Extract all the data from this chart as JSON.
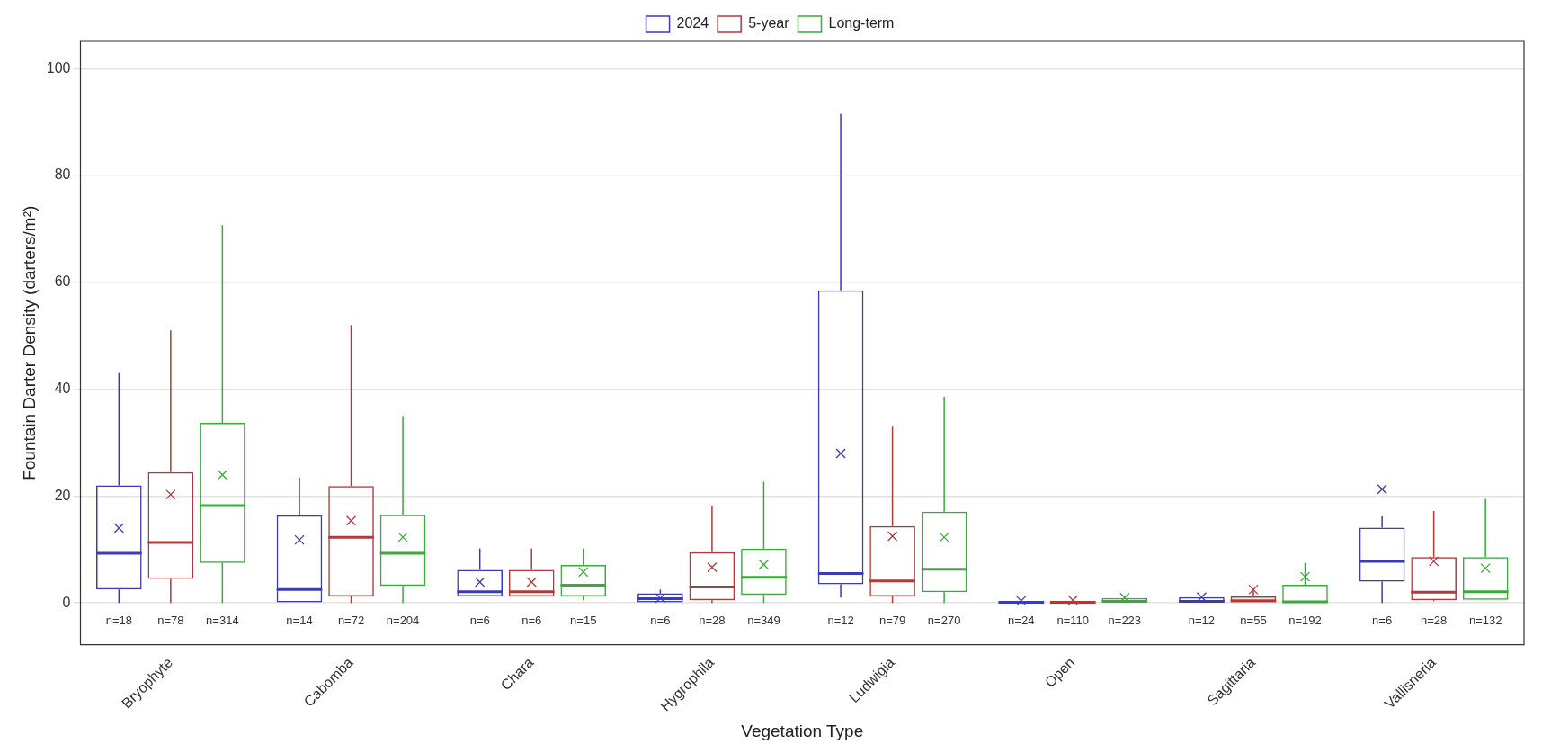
{
  "chart_data": {
    "type": "box",
    "xlabel": "Vegetation Type",
    "ylabel": "Fountain Darter Density (darters/m²)",
    "categories": [
      "Bryophyte",
      "Cabomba",
      "Chara",
      "Hygrophila",
      "Ludwigia",
      "Open",
      "Sagittaria",
      "Vallisneria"
    ],
    "ylim": [
      -7.8,
      105.1
    ],
    "yticks": [
      0,
      20,
      40,
      60,
      80,
      100
    ],
    "grid": "y",
    "legend": "top",
    "series": [
      {
        "name": "2024",
        "color": "#3b3bb3",
        "boxes": [
          {
            "low": 0,
            "q1": 2.5,
            "median": 9.3,
            "q3": 22,
            "high": 43,
            "mean": 14
          },
          {
            "low": 0,
            "q1": 0,
            "median": 2.5,
            "q3": 16.4,
            "high": 23.5,
            "mean": 11.8
          },
          {
            "low": 1.2,
            "q1": 1.2,
            "median": 2.1,
            "q3": 6.2,
            "high": 10.2,
            "mean": 3.9
          },
          {
            "low": 0,
            "q1": 0,
            "median": 0.8,
            "q3": 1.8,
            "high": 2.5,
            "mean": 0.9
          },
          {
            "low": 1,
            "q1": 3.5,
            "median": 5.5,
            "q3": 58.5,
            "high": 91.5,
            "mean": 28
          },
          {
            "low": 0,
            "q1": 0,
            "median": 0.1,
            "q3": 0.3,
            "high": 0.3,
            "mean": 0.4
          },
          {
            "low": 0,
            "q1": 0,
            "median": 0.3,
            "q3": 1.1,
            "high": 1.1,
            "mean": 1.1
          },
          {
            "low": 0,
            "q1": 4,
            "median": 7.8,
            "q3": 14.1,
            "high": 16.2,
            "mean": 21.3
          }
        ]
      },
      {
        "name": "5-year",
        "color": "#b03a3a",
        "boxes": [
          {
            "low": 0,
            "q1": 4.5,
            "median": 11.3,
            "q3": 24.5,
            "high": 51,
            "mean": 20.3
          },
          {
            "low": 0,
            "q1": 1.2,
            "median": 12.3,
            "q3": 21.9,
            "high": 52,
            "mean": 15.4
          },
          {
            "low": 1.2,
            "q1": 1.2,
            "median": 2.1,
            "q3": 6.2,
            "high": 10.2,
            "mean": 3.9
          },
          {
            "low": 0,
            "q1": 0.5,
            "median": 3,
            "q3": 9.5,
            "high": 18.2,
            "mean": 6.7
          },
          {
            "low": 0,
            "q1": 1.2,
            "median": 4.1,
            "q3": 14.4,
            "high": 33,
            "mean": 12.5
          },
          {
            "low": 0,
            "q1": 0,
            "median": 0.1,
            "q3": 0.3,
            "high": 0.3,
            "mean": 0.5
          },
          {
            "low": 0,
            "q1": 0,
            "median": 0.4,
            "q3": 1.2,
            "high": 2.5,
            "mean": 2.5
          },
          {
            "low": 0.3,
            "q1": 0.5,
            "median": 2,
            "q3": 8.6,
            "high": 17.2,
            "mean": 7.8
          }
        ]
      },
      {
        "name": "Long-term",
        "color": "#3aaa3a",
        "boxes": [
          {
            "low": 0,
            "q1": 7.5,
            "median": 18.2,
            "q3": 33.7,
            "high": 70.7,
            "mean": 24
          },
          {
            "low": 0,
            "q1": 3.2,
            "median": 9.3,
            "q3": 16.5,
            "high": 35,
            "mean": 12.3
          },
          {
            "low": 0.5,
            "q1": 1.2,
            "median": 3.3,
            "q3": 7.1,
            "high": 10.2,
            "mean": 5.8
          },
          {
            "low": 0,
            "q1": 1.5,
            "median": 4.8,
            "q3": 10.2,
            "high": 22.7,
            "mean": 7.2
          },
          {
            "low": 0,
            "q1": 2,
            "median": 6.3,
            "q3": 17.1,
            "high": 38.6,
            "mean": 12.3
          },
          {
            "low": 0,
            "q1": 0,
            "median": 0.3,
            "q3": 0.9,
            "high": 0.9,
            "mean": 1
          },
          {
            "low": 0,
            "q1": 0,
            "median": 0.2,
            "q3": 3.4,
            "high": 7.5,
            "mean": 4.9
          },
          {
            "low": 0.5,
            "q1": 0.6,
            "median": 2.1,
            "q3": 8.6,
            "high": 19.5,
            "mean": 6.5
          }
        ]
      }
    ],
    "annotations": [
      "n=18",
      "n=78",
      "n=314",
      "n=14",
      "n=72",
      "n=204",
      "n=6",
      "n=6",
      "n=15",
      "n=6",
      "n=28",
      "n=349",
      "n=12",
      "n=79",
      "n=270",
      "n=24",
      "n=110",
      "n=223",
      "n=12",
      "n=55",
      "n=192",
      "n=6",
      "n=28",
      "n=132"
    ]
  }
}
